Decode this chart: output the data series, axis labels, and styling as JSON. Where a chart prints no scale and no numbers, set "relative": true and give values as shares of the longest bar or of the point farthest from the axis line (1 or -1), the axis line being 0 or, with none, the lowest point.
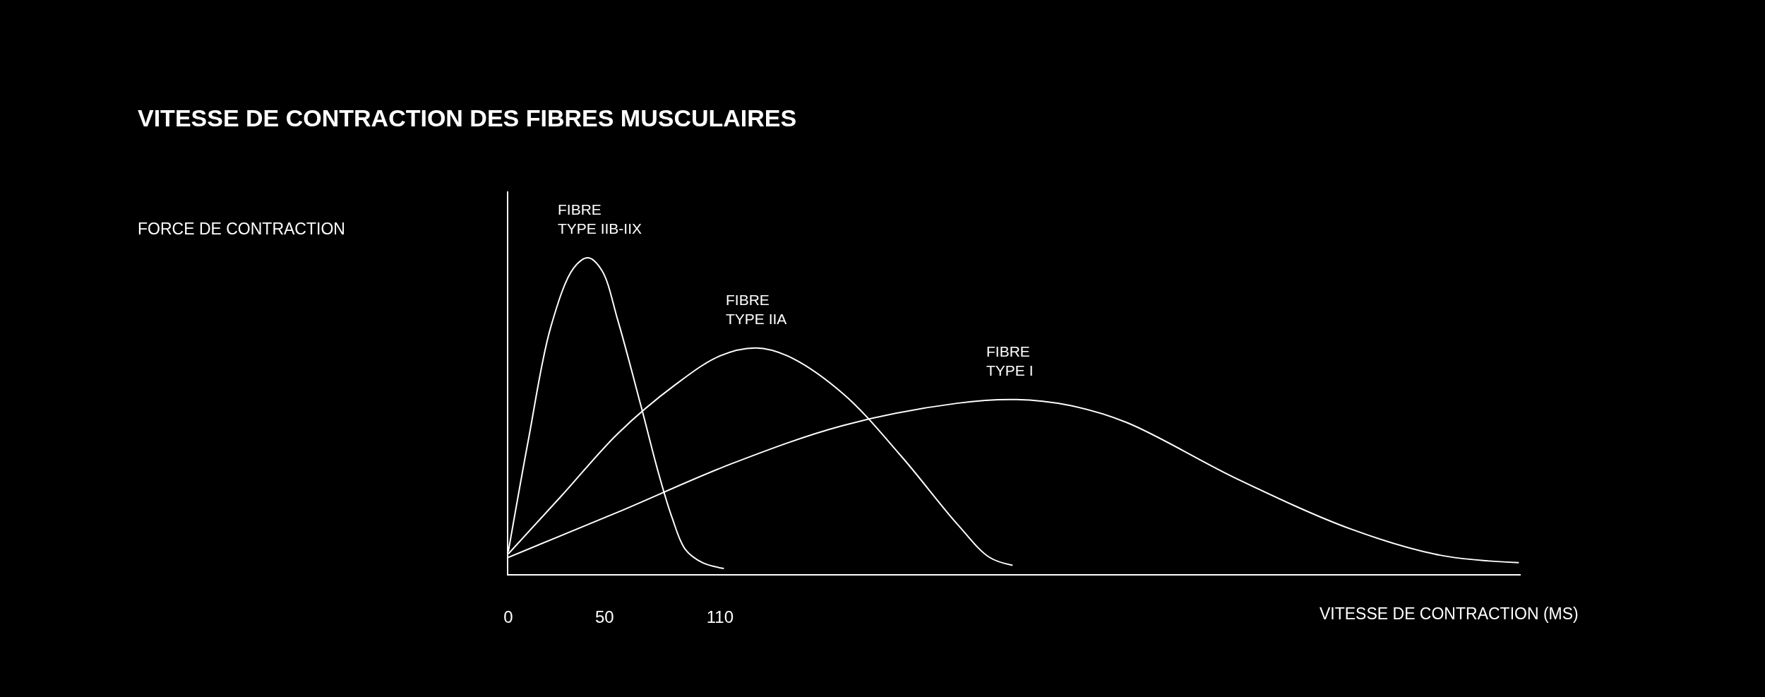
{
  "chart_data": {
    "type": "line",
    "title": "VITESSE DE CONTRACTION DES FIBRES MUSCULAIRES",
    "xlabel": "VITESSE DE CONTRACTION (MS)",
    "relative": true,
    "xlim": [
      0,
      526
    ],
    "xticks": [
      0,
      50,
      110
    ],
    "marker": "none",
    "line_style": "solid",
    "legend": false,
    "series": [
      {
        "name": "FIBRE\nTYPE IIB-IIX",
        "color": "#ffffff",
        "x": [
          0,
          10.5,
          22,
          34,
          41.5,
          48.6,
          57,
          69,
          78,
          85,
          92,
          101,
          112
        ],
        "values": [
          0.071,
          0.427,
          0.78,
          0.968,
          1.0,
          0.96,
          0.8,
          0.53,
          0.32,
          0.18,
          0.078,
          0.036,
          0.018
        ]
      },
      {
        "name": "FIBRE\nTYPE IIA",
        "color": "#ffffff",
        "x": [
          0,
          28,
          57,
          86.6,
          110,
          128.7,
          145,
          174,
          204,
          233,
          250,
          262
        ],
        "values": [
          0.064,
          0.25,
          0.445,
          0.598,
          0.69,
          0.715,
          0.69,
          0.57,
          0.374,
          0.16,
          0.053,
          0.028
        ]
      },
      {
        "name": "FIBRE\nTYPE I",
        "color": "#ffffff",
        "x": [
          0,
          57,
          116,
          174,
          233,
          264,
          291,
          321,
          379,
          438,
          484,
          525
        ],
        "values": [
          0.053,
          0.196,
          0.349,
          0.47,
          0.54,
          0.552,
          0.534,
          0.48,
          0.3,
          0.142,
          0.06,
          0.036
        ]
      }
    ],
    "annotations": [
      "FORCE DE CONTRACTION"
    ]
  }
}
